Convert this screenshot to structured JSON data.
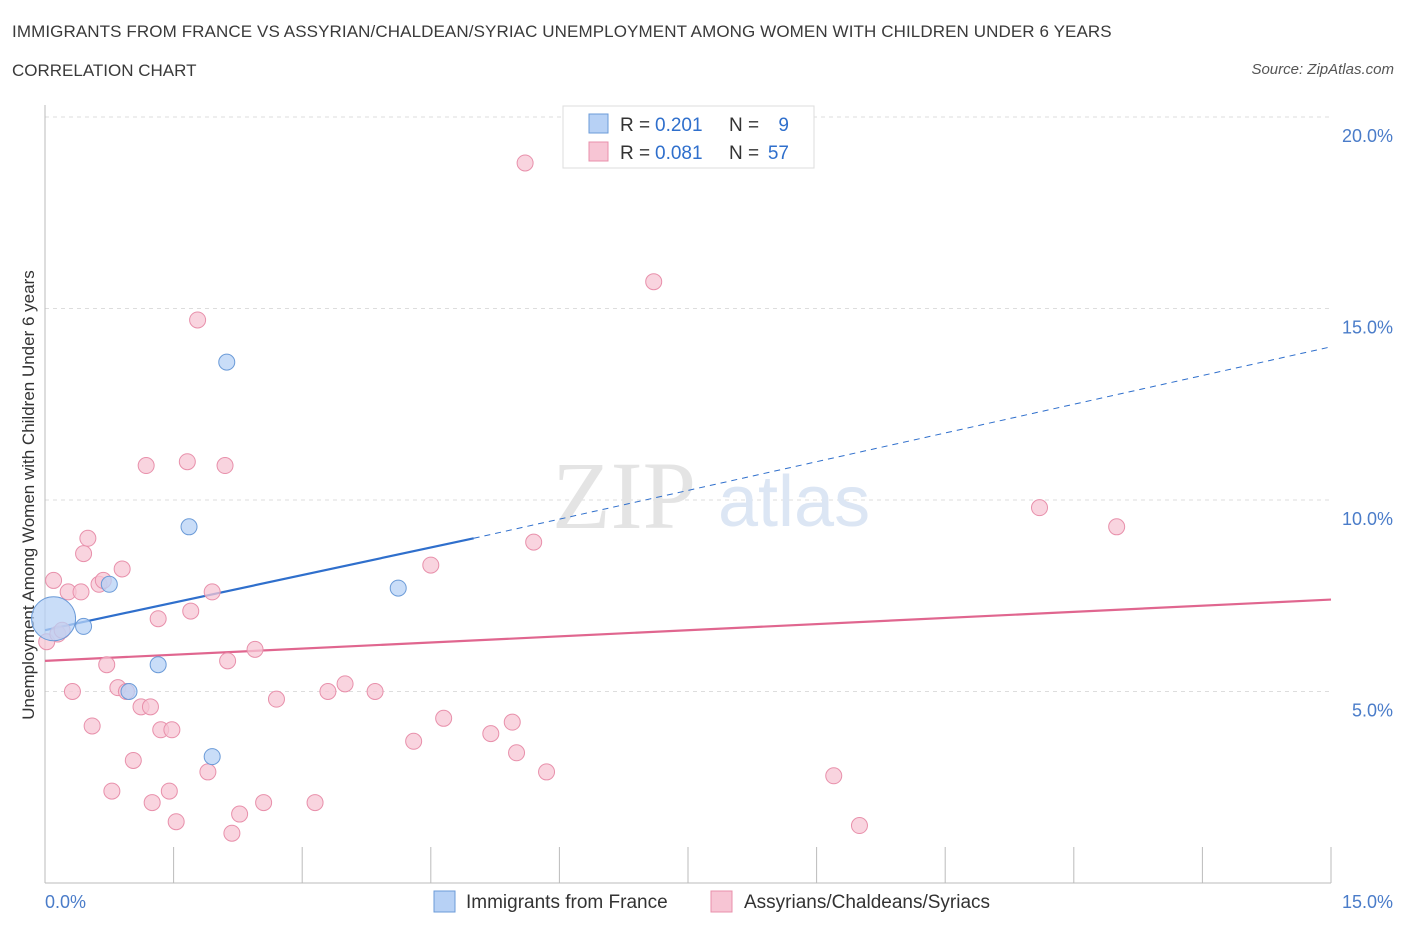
{
  "chart_data": {
    "type": "scatter",
    "title": "IMMIGRANTS FROM FRANCE VS ASSYRIAN/CHALDEAN/SYRIAC UNEMPLOYMENT AMONG WOMEN WITH CHILDREN UNDER 6 YEARS",
    "subtitle": "CORRELATION CHART",
    "source": "Source: ZipAtlas.com",
    "ylabel": "Unemployment Among Women with Children Under 6 years",
    "xlim": [
      0,
      15
    ],
    "ylim": [
      0,
      20
    ],
    "x_tick_labels": [
      {
        "value": 0,
        "label": "0.0%"
      },
      {
        "value": 15,
        "label": "15.0%"
      }
    ],
    "y_tick_labels": [
      {
        "value": 5,
        "label": "5.0%"
      },
      {
        "value": 10,
        "label": "10.0%"
      },
      {
        "value": 15,
        "label": "15.0%"
      },
      {
        "value": 20,
        "label": "20.0%"
      }
    ],
    "watermark": {
      "part1": "ZIP",
      "part2": "atlas"
    },
    "colors": {
      "france_fill": "#b7d1f5",
      "france_stroke": "#6b9bd8",
      "france_line": "#2f6fcc",
      "assyrian_fill": "#f7c5d4",
      "assyrian_stroke": "#e890ab",
      "assyrian_line": "#e0668f",
      "grid": "#dddddd",
      "tick_text": "#4a7cc9"
    },
    "legend": {
      "rows": [
        {
          "r_label": "R =",
          "r_value": "0.201",
          "n_label": "N =",
          "n_value": "9"
        },
        {
          "r_label": "R =",
          "r_value": "0.081",
          "n_label": "N =",
          "n_value": "57"
        }
      ]
    },
    "series": [
      {
        "name": "Immigrants from France",
        "trend": {
          "x0": 0,
          "y0": 6.6,
          "x1": 5.0,
          "y1": 9.0,
          "x_ext": 15,
          "y_ext": 14.0
        },
        "points": [
          {
            "x": 0.1,
            "y": 6.9,
            "big": true
          },
          {
            "x": 0.45,
            "y": 6.7
          },
          {
            "x": 0.75,
            "y": 7.8
          },
          {
            "x": 0.98,
            "y": 5.0
          },
          {
            "x": 1.32,
            "y": 5.7
          },
          {
            "x": 1.68,
            "y": 9.3
          },
          {
            "x": 1.95,
            "y": 3.3
          },
          {
            "x": 2.12,
            "y": 13.6
          },
          {
            "x": 4.12,
            "y": 7.7
          }
        ]
      },
      {
        "name": "Assyrians/Chaldeans/Syriacs",
        "trend": {
          "x0": 0,
          "y0": 5.8,
          "x1": 15,
          "y1": 7.4
        },
        "points": [
          {
            "x": 0.02,
            "y": 6.3
          },
          {
            "x": 0.1,
            "y": 7.9
          },
          {
            "x": 0.15,
            "y": 6.5
          },
          {
            "x": 0.2,
            "y": 6.6
          },
          {
            "x": 0.27,
            "y": 7.6
          },
          {
            "x": 0.32,
            "y": 5.0
          },
          {
            "x": 0.42,
            "y": 7.6
          },
          {
            "x": 0.45,
            "y": 8.6
          },
          {
            "x": 0.5,
            "y": 9.0
          },
          {
            "x": 0.55,
            "y": 4.1
          },
          {
            "x": 0.63,
            "y": 7.8
          },
          {
            "x": 0.68,
            "y": 7.9
          },
          {
            "x": 0.72,
            "y": 5.7
          },
          {
            "x": 0.78,
            "y": 2.4
          },
          {
            "x": 0.85,
            "y": 5.1
          },
          {
            "x": 0.9,
            "y": 8.2
          },
          {
            "x": 0.95,
            "y": 5.0
          },
          {
            "x": 1.03,
            "y": 3.2
          },
          {
            "x": 1.12,
            "y": 4.6
          },
          {
            "x": 1.18,
            "y": 10.9
          },
          {
            "x": 1.23,
            "y": 4.6
          },
          {
            "x": 1.25,
            "y": 2.1
          },
          {
            "x": 1.32,
            "y": 6.9
          },
          {
            "x": 1.35,
            "y": 4.0
          },
          {
            "x": 1.45,
            "y": 2.4
          },
          {
            "x": 1.48,
            "y": 4.0
          },
          {
            "x": 1.53,
            "y": 1.6
          },
          {
            "x": 1.66,
            "y": 11.0
          },
          {
            "x": 1.7,
            "y": 7.1
          },
          {
            "x": 1.78,
            "y": 14.7
          },
          {
            "x": 1.9,
            "y": 2.9
          },
          {
            "x": 1.95,
            "y": 7.6
          },
          {
            "x": 2.1,
            "y": 10.9
          },
          {
            "x": 2.13,
            "y": 5.8
          },
          {
            "x": 2.18,
            "y": 1.3
          },
          {
            "x": 2.27,
            "y": 1.8
          },
          {
            "x": 2.45,
            "y": 6.1
          },
          {
            "x": 2.55,
            "y": 2.1
          },
          {
            "x": 2.7,
            "y": 4.8
          },
          {
            "x": 3.15,
            "y": 2.1
          },
          {
            "x": 3.3,
            "y": 5.0
          },
          {
            "x": 3.5,
            "y": 5.2
          },
          {
            "x": 3.85,
            "y": 5.0
          },
          {
            "x": 4.3,
            "y": 3.7
          },
          {
            "x": 4.5,
            "y": 8.3
          },
          {
            "x": 4.65,
            "y": 4.3
          },
          {
            "x": 5.2,
            "y": 3.9
          },
          {
            "x": 5.45,
            "y": 4.2
          },
          {
            "x": 5.5,
            "y": 3.4
          },
          {
            "x": 5.6,
            "y": 18.8
          },
          {
            "x": 5.7,
            "y": 8.9
          },
          {
            "x": 5.85,
            "y": 2.9
          },
          {
            "x": 7.1,
            "y": 15.7
          },
          {
            "x": 9.2,
            "y": 2.8
          },
          {
            "x": 9.5,
            "y": 1.5
          },
          {
            "x": 11.6,
            "y": 9.8
          },
          {
            "x": 12.5,
            "y": 9.3
          }
        ]
      }
    ]
  }
}
